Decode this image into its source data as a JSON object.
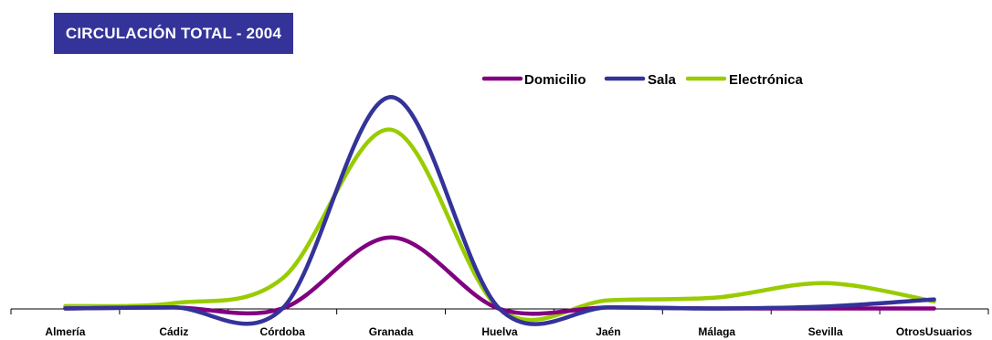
{
  "chart_data": {
    "type": "line",
    "title": "CIRCULACIÓN TOTAL - 2004",
    "xlabel": "",
    "ylabel": "",
    "categories": [
      "Almería",
      "Cádiz",
      "Córdoba",
      "Granada",
      "Huelva",
      "Jaén",
      "Málaga",
      "Sevilla",
      "OtrosUsuarios"
    ],
    "series": [
      {
        "name": "Domicilio",
        "color": "#800080",
        "values": [
          0.5,
          1.5,
          0.5,
          75,
          0,
          1.5,
          0.5,
          0.5,
          0.5
        ]
      },
      {
        "name": "Sala",
        "color": "#333399",
        "values": [
          0.5,
          1.5,
          0.5,
          222,
          0,
          1.5,
          0.5,
          2.5,
          10
        ]
      },
      {
        "name": "Electrónica",
        "color": "#99CC00",
        "values": [
          3,
          6,
          32,
          188,
          0,
          9,
          12,
          27,
          8
        ]
      }
    ],
    "ylim": [
      0,
      230
    ],
    "grid": false,
    "legend": "top-right",
    "smooth": true
  }
}
